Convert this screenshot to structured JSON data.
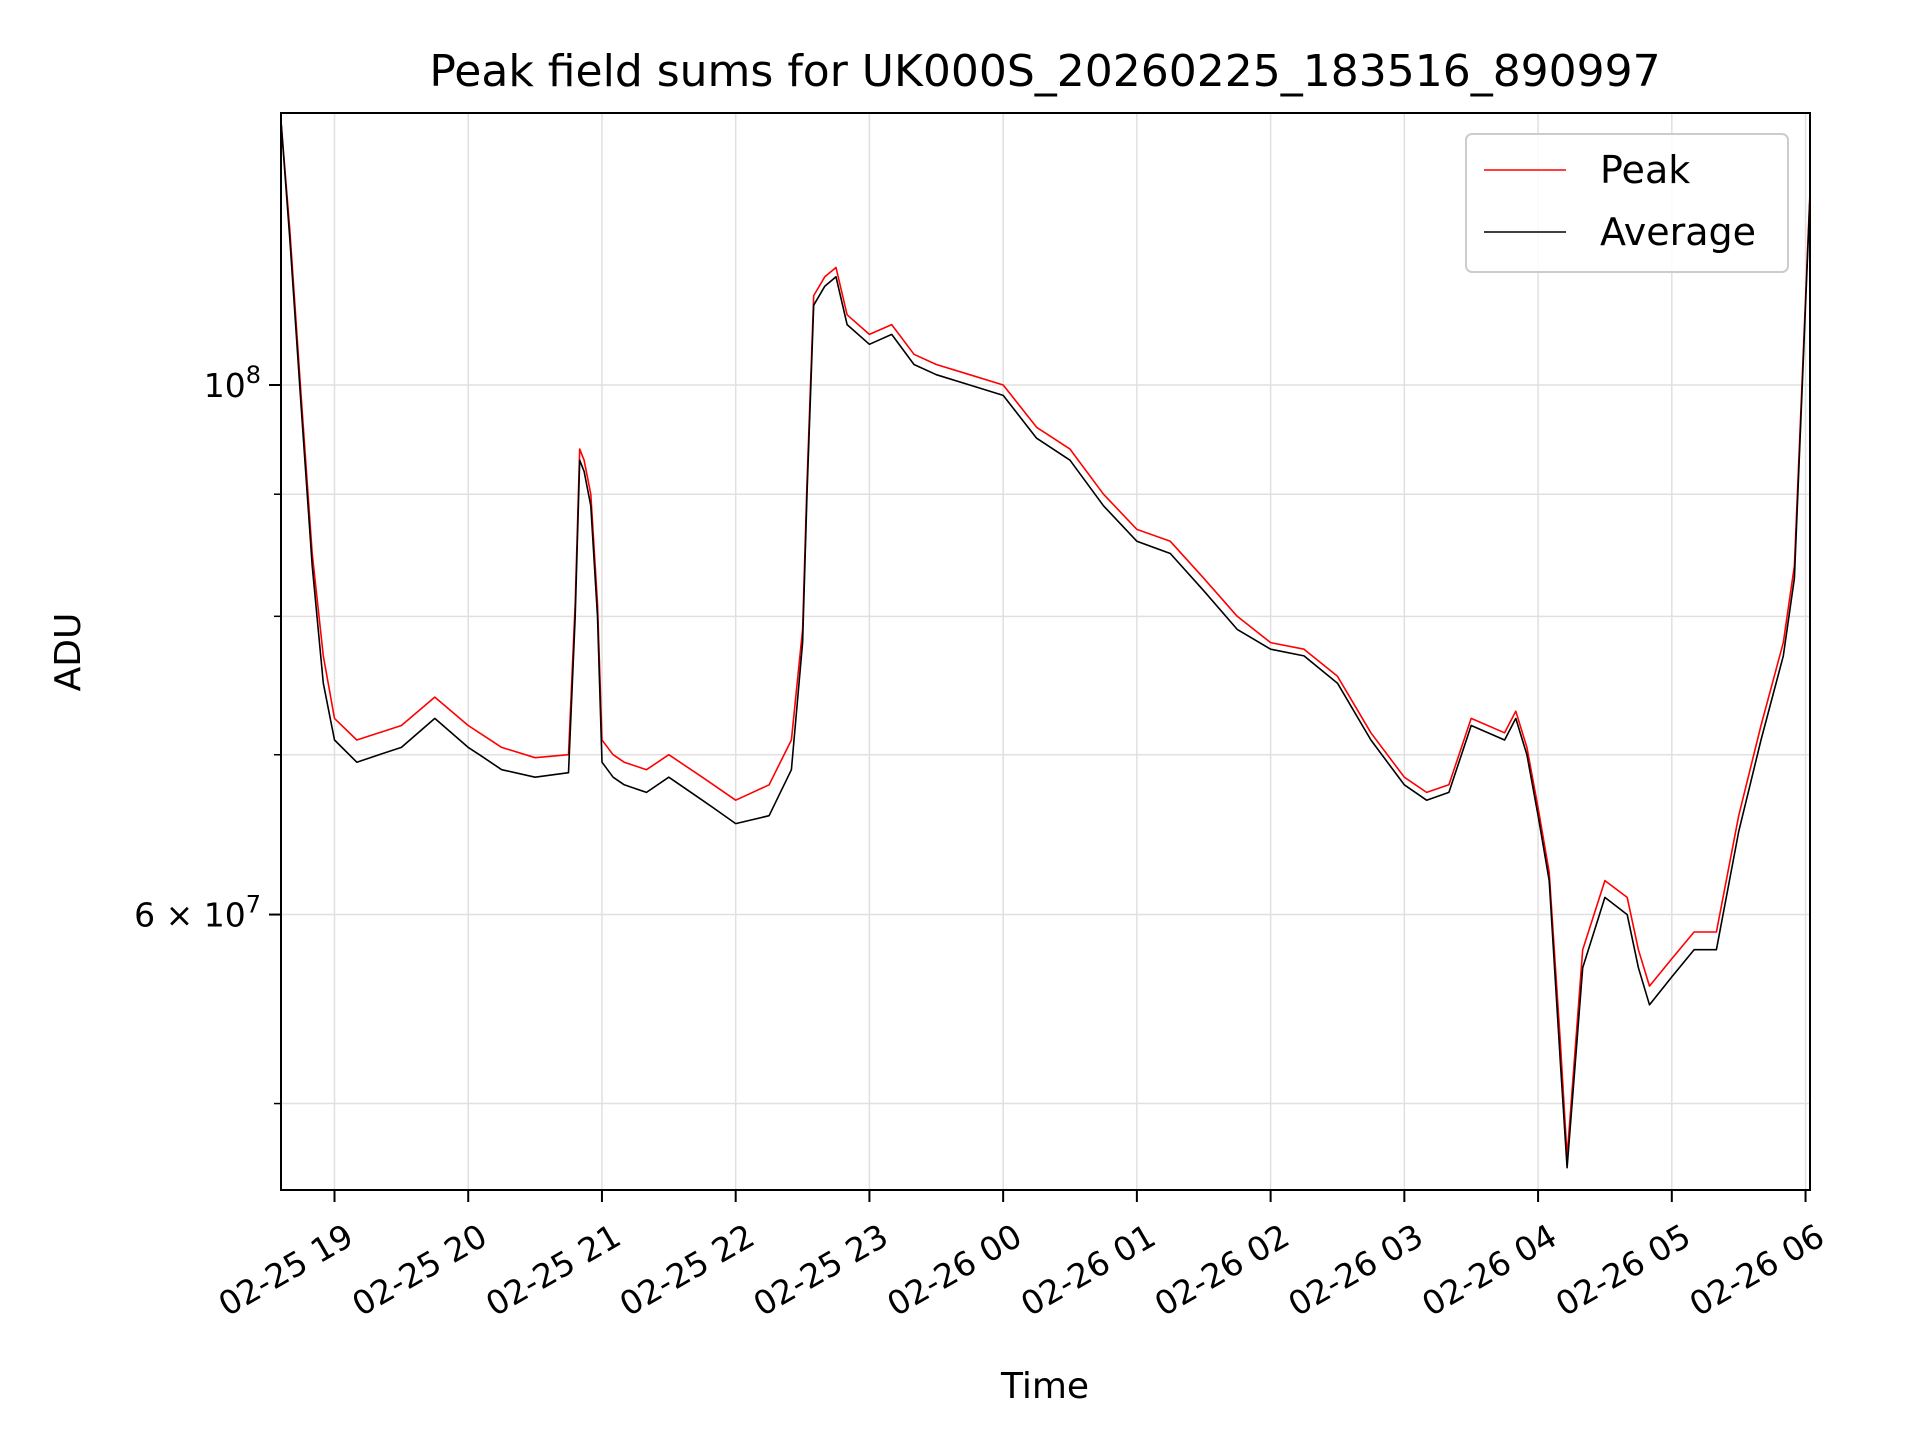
{
  "chart_data": {
    "type": "line",
    "title": "Peak field sums for UK000S_20260225_183516_890997",
    "xlabel": "Time",
    "ylabel": "ADU",
    "yscale": "log",
    "ylim": [
      46000000,
      130000000
    ],
    "xlim": [
      "2026-02-25 18:36",
      "2026-02-26 06:02"
    ],
    "grid": true,
    "legend_position": "top-right",
    "x_ticks": [
      "02-25 19",
      "02-25 20",
      "02-25 21",
      "02-25 22",
      "02-25 23",
      "02-26 00",
      "02-26 01",
      "02-26 02",
      "02-26 03",
      "02-26 04",
      "02-26 05",
      "02-26 06"
    ],
    "y_ticks": [
      {
        "value": 100000000,
        "label_base": "10",
        "label_exp": "8"
      },
      {
        "value": 60000000,
        "label_base": "6 × 10",
        "label_exp": "7"
      }
    ],
    "series": [
      {
        "name": "Peak",
        "color": "#ff0000"
      },
      {
        "name": "Average",
        "color": "#000000"
      }
    ],
    "x": [
      "18:36",
      "18:40",
      "18:45",
      "18:50",
      "18:55",
      "19:00",
      "19:10",
      "19:20",
      "19:30",
      "19:45",
      "20:00",
      "20:05",
      "20:15",
      "20:30",
      "20:45",
      "20:48",
      "20:50",
      "20:52",
      "20:55",
      "20:58",
      "21:00",
      "21:05",
      "21:10",
      "21:20",
      "21:30",
      "21:45",
      "21:50",
      "22:00",
      "22:15",
      "22:25",
      "22:30",
      "22:32",
      "22:35",
      "22:40",
      "22:45",
      "22:50",
      "23:00",
      "23:10",
      "23:20",
      "23:30",
      "23:45",
      "00:00",
      "00:15",
      "00:30",
      "00:45",
      "01:00",
      "01:15",
      "01:30",
      "01:45",
      "02:00",
      "02:15",
      "02:30",
      "02:45",
      "03:00",
      "03:10",
      "03:20",
      "03:30",
      "03:45",
      "03:50",
      "03:55",
      "04:00",
      "04:05",
      "04:10",
      "04:13",
      "04:20",
      "04:30",
      "04:40",
      "04:45",
      "04:50",
      "05:00",
      "05:10",
      "05:20",
      "05:30",
      "05:40",
      "05:50",
      "05:55",
      "06:02"
    ],
    "average": [
      129000000,
      115000000,
      98000000,
      84000000,
      75000000,
      71000000,
      69500000,
      70000000,
      70500000,
      72500000,
      70500000,
      70000000,
      69000000,
      68500000,
      68800000,
      80000000,
      93000000,
      92000000,
      89000000,
      80000000,
      69500000,
      68500000,
      68000000,
      67500000,
      68500000,
      67000000,
      66500000,
      65500000,
      66000000,
      69000000,
      78000000,
      90000000,
      108000000,
      110000000,
      111000000,
      106000000,
      104000000,
      105000000,
      102000000,
      101000000,
      100000000,
      99000000,
      95000000,
      93000000,
      89000000,
      86000000,
      85000000,
      82000000,
      79000000,
      77500000,
      77000000,
      75000000,
      71000000,
      68000000,
      67000000,
      67500000,
      72000000,
      71000000,
      72500000,
      70000000,
      66000000,
      62000000,
      52000000,
      47000000,
      57000000,
      61000000,
      60000000,
      57000000,
      55000000,
      56500000,
      58000000,
      58000000,
      65000000,
      71000000,
      77000000,
      83000000,
      120000000
    ],
    "peak": [
      129000000,
      116000000,
      99000000,
      85000000,
      77000000,
      72500000,
      71000000,
      71500000,
      72000000,
      74000000,
      72000000,
      71500000,
      70500000,
      69800000,
      70000000,
      81000000,
      94000000,
      93000000,
      90000000,
      81000000,
      71000000,
      70000000,
      69500000,
      69000000,
      70000000,
      68500000,
      68000000,
      67000000,
      68000000,
      71000000,
      79000000,
      91000000,
      109000000,
      111000000,
      112000000,
      107000000,
      105000000,
      106000000,
      103000000,
      102000000,
      101000000,
      100000000,
      96000000,
      94000000,
      90000000,
      87000000,
      86000000,
      83000000,
      80000000,
      78000000,
      77500000,
      75500000,
      71500000,
      68500000,
      67500000,
      68000000,
      72500000,
      71500000,
      73000000,
      70500000,
      66500000,
      62500000,
      53000000,
      47500000,
      58000000,
      62000000,
      61000000,
      58000000,
      56000000,
      57500000,
      59000000,
      59000000,
      66000000,
      72000000,
      78000000,
      84000000,
      120500000
    ]
  }
}
